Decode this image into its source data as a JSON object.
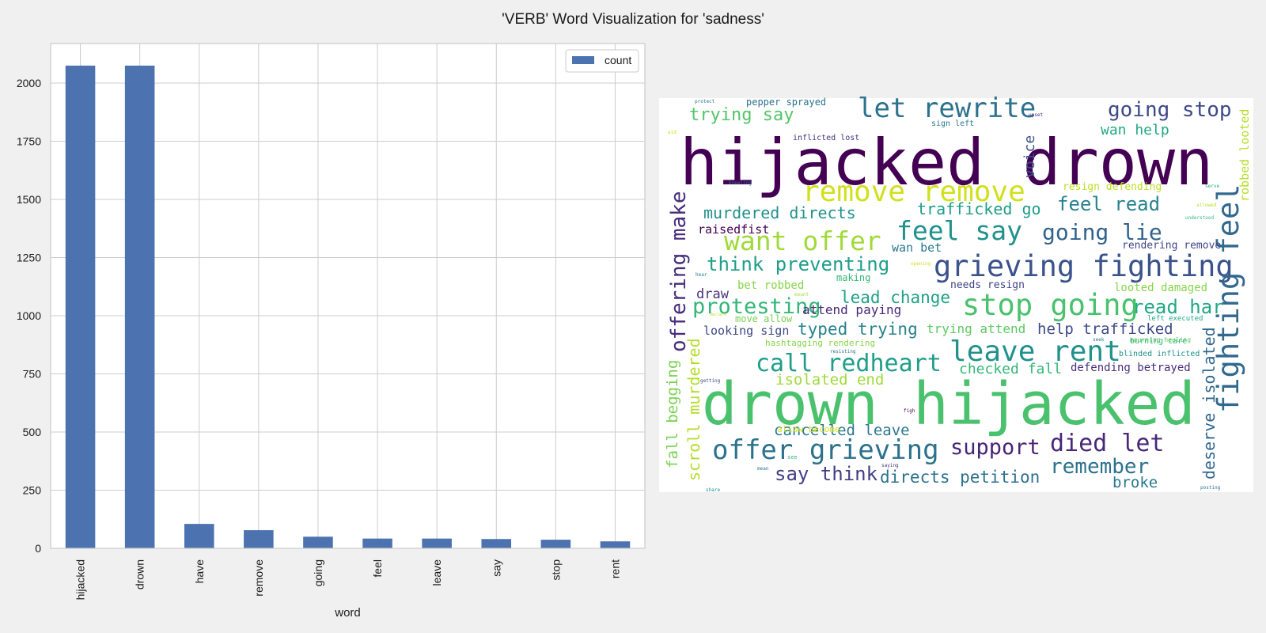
{
  "figure": {
    "title": "'VERB' Word Visualization for 'sadness'"
  },
  "chart_data": [
    {
      "type": "bar",
      "xlabel": "word",
      "ylabel": "",
      "categories": [
        "hijacked",
        "drown",
        "have",
        "remove",
        "going",
        "feel",
        "leave",
        "say",
        "stop",
        "rent"
      ],
      "series": [
        {
          "name": "count",
          "values": [
            2075,
            2075,
            105,
            78,
            50,
            42,
            42,
            40,
            37,
            30
          ],
          "color": "#4c72b0"
        }
      ],
      "ylim": [
        0,
        2170
      ],
      "yticks": [
        0,
        250,
        500,
        750,
        1000,
        1250,
        1500,
        1750,
        2000
      ],
      "grid": true,
      "legend": "top-right"
    }
  ],
  "wordcloud": {
    "background": "#ffffff",
    "words": [
      {
        "text": "hijacked drown",
        "color": "#440154"
      },
      {
        "text": "drown hijacked",
        "color": "#4ac16d"
      },
      {
        "text": "remove remove",
        "color": "#d0e11c"
      },
      {
        "text": "grieving fighting",
        "color": "#3b528b"
      },
      {
        "text": "offer grieving",
        "color": "#2c728e"
      },
      {
        "text": "stop going",
        "color": "#4ac16d"
      },
      {
        "text": "leave rent",
        "color": "#21918c"
      },
      {
        "text": "feel say",
        "color": "#21918c"
      },
      {
        "text": "want offer",
        "color": "#a0da39"
      },
      {
        "text": "fighting feel",
        "color": "#31688e"
      },
      {
        "text": "let rewrite",
        "color": "#2c728e"
      },
      {
        "text": "call redheart",
        "color": "#1f9e89"
      },
      {
        "text": "died let",
        "color": "#482878"
      },
      {
        "text": "offering make",
        "color": "#472d7b"
      },
      {
        "text": "going lie",
        "color": "#33638d"
      },
      {
        "text": "going stop",
        "color": "#3e4989"
      },
      {
        "text": "protesting",
        "color": "#35b779"
      },
      {
        "text": "think preventing",
        "color": "#1f9e89"
      },
      {
        "text": "remember",
        "color": "#2c728e"
      },
      {
        "text": "support",
        "color": "#482475"
      },
      {
        "text": "read har",
        "color": "#22a884"
      },
      {
        "text": "say think",
        "color": "#433e85"
      },
      {
        "text": "directs petition",
        "color": "#2c728e"
      },
      {
        "text": "feel read",
        "color": "#26828e"
      },
      {
        "text": "murdered directs",
        "color": "#21918c"
      },
      {
        "text": "trying say",
        "color": "#54c568"
      },
      {
        "text": "lead change",
        "color": "#1fa187"
      },
      {
        "text": "typed trying",
        "color": "#26828e"
      },
      {
        "text": "help trafficked",
        "color": "#3e4989"
      },
      {
        "text": "cancelled leave",
        "color": "#2a788e"
      },
      {
        "text": "trafficked go",
        "color": "#1f9e89"
      },
      {
        "text": "deserve isolated",
        "color": "#31688e"
      },
      {
        "text": "scroll murdered",
        "color": "#b5de2b"
      },
      {
        "text": "fall begging",
        "color": "#7ad151"
      },
      {
        "text": "isolated end",
        "color": "#a0da39"
      },
      {
        "text": "checked fall",
        "color": "#35b779"
      },
      {
        "text": "wan help",
        "color": "#22a884"
      },
      {
        "text": "broke",
        "color": "#2a788e"
      },
      {
        "text": "voice",
        "color": "#3b528b"
      },
      {
        "text": "robbed looted",
        "color": "#b5de2b"
      },
      {
        "text": "raisedfist",
        "color": "#440154"
      },
      {
        "text": "draw",
        "color": "#46337e"
      },
      {
        "text": "attend paying",
        "color": "#482878"
      },
      {
        "text": "looking sign",
        "color": "#3e4989"
      },
      {
        "text": "trying attend",
        "color": "#5ec962"
      },
      {
        "text": "defending betrayed",
        "color": "#472d7b"
      },
      {
        "text": "looted damaged",
        "color": "#86d549"
      },
      {
        "text": "needs resign",
        "color": "#414487"
      },
      {
        "text": "wan bet",
        "color": "#2a788e"
      },
      {
        "text": "resign defending",
        "color": "#bddf26"
      },
      {
        "text": "rendering remove",
        "color": "#414487"
      },
      {
        "text": "bet robbed",
        "color": "#86d549"
      },
      {
        "text": "pepper sprayed",
        "color": "#2c728e"
      },
      {
        "text": "allow become",
        "color": "#d0e11c"
      },
      {
        "text": "making",
        "color": "#35b779"
      },
      {
        "text": "move allow",
        "color": "#7ad151"
      },
      {
        "text": "hashtagging rendering",
        "color": "#86d549"
      },
      {
        "text": "inflicted lost",
        "color": "#46337e"
      },
      {
        "text": "sign left",
        "color": "#2a788e"
      },
      {
        "text": "burning care",
        "color": "#35b779"
      },
      {
        "text": "blinded inflicted",
        "color": "#21918c"
      },
      {
        "text": "left executed",
        "color": "#22a884"
      },
      {
        "text": "mourning healing",
        "color": "#5ec962"
      },
      {
        "text": "protect",
        "color": "#2c728e"
      },
      {
        "text": "upset",
        "color": "#482878"
      },
      {
        "text": "kneeling",
        "color": "#2a788e"
      },
      {
        "text": "serve",
        "color": "#22a884"
      },
      {
        "text": "allowed",
        "color": "#b5de2b"
      },
      {
        "text": "understood",
        "color": "#35b779"
      },
      {
        "text": "opening",
        "color": "#d0e11c"
      },
      {
        "text": "hear",
        "color": "#2a788e"
      },
      {
        "text": "mount",
        "color": "#a0da39"
      },
      {
        "text": "declare",
        "color": "#bddf26"
      },
      {
        "text": "resisting",
        "color": "#2c728e"
      },
      {
        "text": "seek",
        "color": "#2a788e"
      },
      {
        "text": "getting",
        "color": "#3e4989"
      },
      {
        "text": "figh",
        "color": "#440154"
      },
      {
        "text": "see",
        "color": "#35b779"
      },
      {
        "text": "saying",
        "color": "#46337e"
      },
      {
        "text": "mean",
        "color": "#2a788e"
      },
      {
        "text": "share",
        "color": "#21918c"
      },
      {
        "text": "posting",
        "color": "#2c728e"
      },
      {
        "text": "aid",
        "color": "#d0e11c"
      }
    ]
  }
}
